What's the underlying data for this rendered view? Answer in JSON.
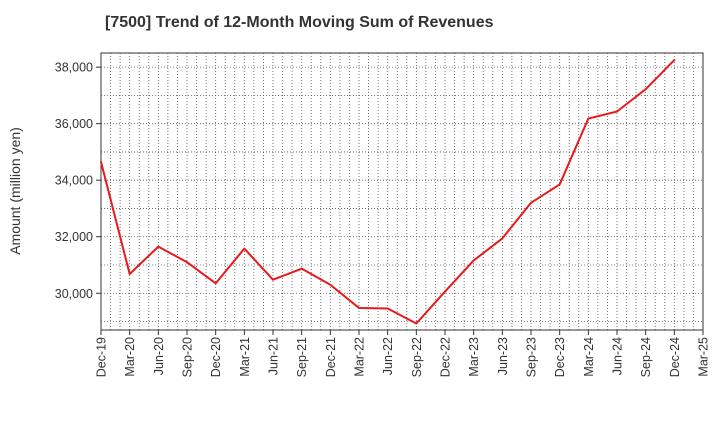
{
  "chart_data": {
    "type": "line",
    "title": "[7500]  Trend of 12-Month Moving Sum of Revenues",
    "xlabel": "",
    "ylabel": "Amount (million yen)",
    "ylim": [
      28700,
      38500
    ],
    "yticks": [
      30000,
      32000,
      34000,
      36000,
      38000
    ],
    "ytick_labels": [
      "30,000",
      "32,000",
      "34,000",
      "36,000",
      "38,000"
    ],
    "xtick_labels": [
      "Dec-19",
      "Mar-20",
      "Jun-20",
      "Sep-20",
      "Dec-20",
      "Mar-21",
      "Jun-21",
      "Sep-21",
      "Dec-21",
      "Mar-22",
      "Jun-22",
      "Sep-22",
      "Dec-22",
      "Mar-23",
      "Jun-23",
      "Sep-23",
      "Dec-23",
      "Mar-24",
      "Jun-24",
      "Sep-24",
      "Dec-24",
      "Mar-25"
    ],
    "grid": true,
    "series": [
      {
        "name": "",
        "color": "#e8191b",
        "x": [
          "Dec-19",
          "Mar-20",
          "Jun-20",
          "Sep-20",
          "Dec-20",
          "Mar-21",
          "Jun-21",
          "Sep-21",
          "Dec-21",
          "Mar-22",
          "Jun-22",
          "Sep-22",
          "Dec-22",
          "Mar-23",
          "Jun-23",
          "Sep-23",
          "Dec-23",
          "Mar-24",
          "Jun-24",
          "Sep-24",
          "Dec-24"
        ],
        "values": [
          34650,
          30680,
          31650,
          31100,
          30350,
          31580,
          30480,
          30870,
          30300,
          29480,
          29460,
          28930,
          30060,
          31160,
          31940,
          33200,
          33850,
          36180,
          36430,
          37220,
          38250
        ]
      }
    ]
  }
}
